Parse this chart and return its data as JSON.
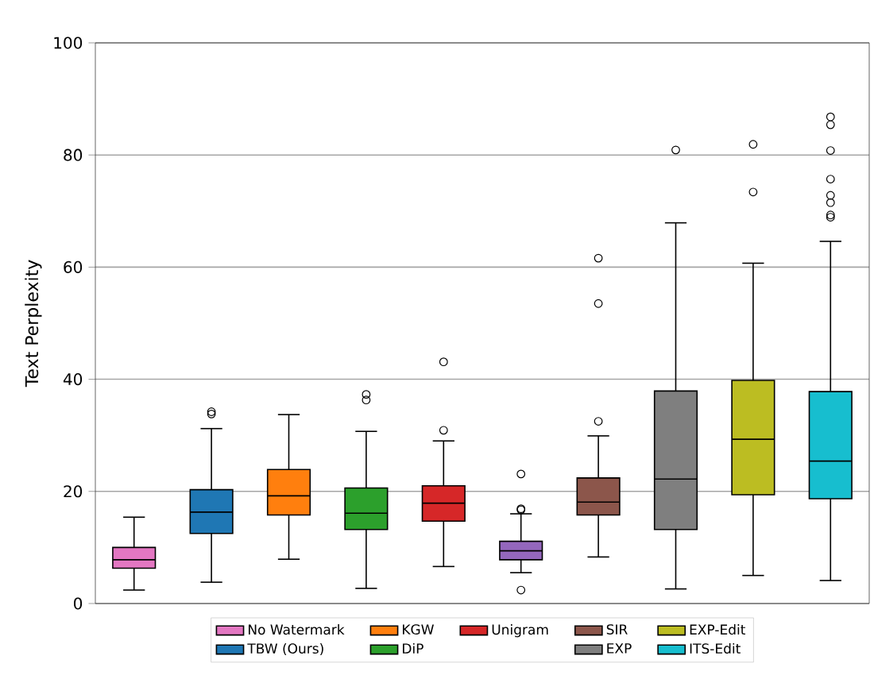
{
  "chart_data": {
    "type": "box",
    "ylabel": "Text Perplexity",
    "ylim": [
      0,
      100
    ],
    "yticks": [
      0,
      20,
      40,
      60,
      80,
      100
    ],
    "grid": "y",
    "legend": "bottom",
    "tick_labels": "y",
    "series": [
      {
        "name": "No Watermark",
        "color": "#e377c2",
        "boxes": [
          {
            "low": 2.4,
            "q1": 6.3,
            "median": 7.8,
            "q3": 10,
            "high": 15.4
          }
        ]
      },
      {
        "name": "TBW (Ours)",
        "color": "#1f77b4",
        "boxes": [
          {
            "low": 3.8,
            "q1": 12.5,
            "median": 16.3,
            "q3": 20.3,
            "high": 31.2,
            "outliers": [
              33.8,
              34.2
            ]
          }
        ]
      },
      {
        "name": "KGW",
        "color": "#ff7f0e",
        "boxes": [
          {
            "low": 7.9,
            "q1": 15.8,
            "median": 19.2,
            "q3": 23.9,
            "high": 33.7
          }
        ]
      },
      {
        "name": "DiP",
        "color": "#2ca02c",
        "boxes": [
          {
            "low": 2.7,
            "q1": 13.2,
            "median": 16.1,
            "q3": 20.6,
            "high": 30.7,
            "outliers": [
              36.3,
              37.3
            ]
          }
        ]
      },
      {
        "name": "Unigram",
        "color": "#d62728",
        "boxes": [
          {
            "low": 6.6,
            "q1": 14.7,
            "median": 17.9,
            "q3": 21,
            "high": 29,
            "outliers": [
              30.9,
              43.1
            ]
          }
        ]
      },
      {
        "color": "#9467bd",
        "boxes": [
          {
            "low": 5.5,
            "q1": 7.8,
            "median": 9.4,
            "q3": 11.1,
            "high": 16,
            "outliers": [
              2.4,
              16.7,
              16.9,
              23.1
            ]
          }
        ]
      },
      {
        "name": "SIR",
        "color": "#8c564b",
        "boxes": [
          {
            "low": 8.3,
            "q1": 15.8,
            "median": 18.1,
            "q3": 22.4,
            "high": 29.9,
            "outliers": [
              32.5,
              53.5,
              61.6
            ]
          }
        ]
      },
      {
        "name": "EXP",
        "color": "#7f7f7f",
        "boxes": [
          {
            "low": 2.6,
            "q1": 13.2,
            "median": 22.2,
            "q3": 37.9,
            "high": 67.9,
            "outliers": [
              80.9
            ]
          }
        ]
      },
      {
        "name": "EXP-Edit",
        "color": "#bcbd22",
        "boxes": [
          {
            "low": 5,
            "q1": 19.4,
            "median": 29.3,
            "q3": 39.8,
            "high": 60.7,
            "outliers": [
              73.4,
              81.9
            ]
          }
        ]
      },
      {
        "name": "ITS-Edit",
        "color": "#17becf",
        "boxes": [
          {
            "low": 4.1,
            "q1": 18.7,
            "median": 25.4,
            "q3": 37.8,
            "high": 64.6,
            "outliers": [
              68.9,
              69.3,
              71.5,
              72.8,
              75.7,
              80.8,
              85.4,
              86.8
            ]
          }
        ]
      }
    ]
  }
}
